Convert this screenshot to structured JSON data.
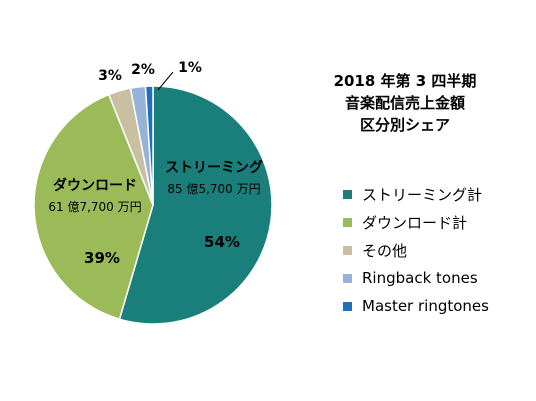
{
  "chart_data": {
    "type": "pie",
    "title_lines": [
      "2018 年第 3 四半期",
      "音楽配信売上金額",
      "区分別シェア"
    ],
    "slices": [
      {
        "legend": "ストリーミング計",
        "percent_label": "54%",
        "value": 54,
        "color": "#1a7f7a",
        "inner_label": "ストリーミング",
        "inner_sublabel": "85 億5,700 万円"
      },
      {
        "legend": "ダウンロード計",
        "percent_label": "39%",
        "value": 39,
        "color": "#9bbb59",
        "inner_label": "ダウンロード",
        "inner_sublabel": "61 億7,700 万円"
      },
      {
        "legend": "その他",
        "percent_label": "3%",
        "value": 3,
        "color": "#c8c0a0"
      },
      {
        "legend": "Ringback tones",
        "percent_label": "2%",
        "value": 2,
        "color": "#95b3d7"
      },
      {
        "legend": "Master ringtones",
        "percent_label": "1%",
        "value": 1,
        "color": "#1f6fc0"
      }
    ],
    "legend_position": "right"
  }
}
